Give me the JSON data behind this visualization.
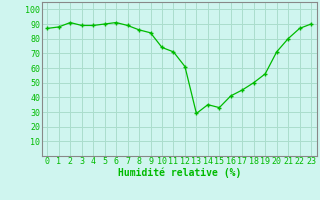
{
  "x": [
    0,
    1,
    2,
    3,
    4,
    5,
    6,
    7,
    8,
    9,
    10,
    11,
    12,
    13,
    14,
    15,
    16,
    17,
    18,
    19,
    20,
    21,
    22,
    23
  ],
  "y": [
    87,
    88,
    91,
    89,
    89,
    90,
    91,
    89,
    86,
    84,
    74,
    71,
    61,
    29,
    35,
    33,
    41,
    45,
    50,
    56,
    71,
    80,
    87,
    90
  ],
  "line_color": "#00bb00",
  "marker": "+",
  "bg_color": "#cff5ef",
  "grid_color": "#aaddcc",
  "xlabel": "Humidité relative (%)",
  "xlabel_color": "#00bb00",
  "ylim": [
    0,
    105
  ],
  "yticks": [
    10,
    20,
    30,
    40,
    50,
    60,
    70,
    80,
    90,
    100
  ],
  "axis_label_fontsize": 7,
  "tick_fontsize": 6
}
